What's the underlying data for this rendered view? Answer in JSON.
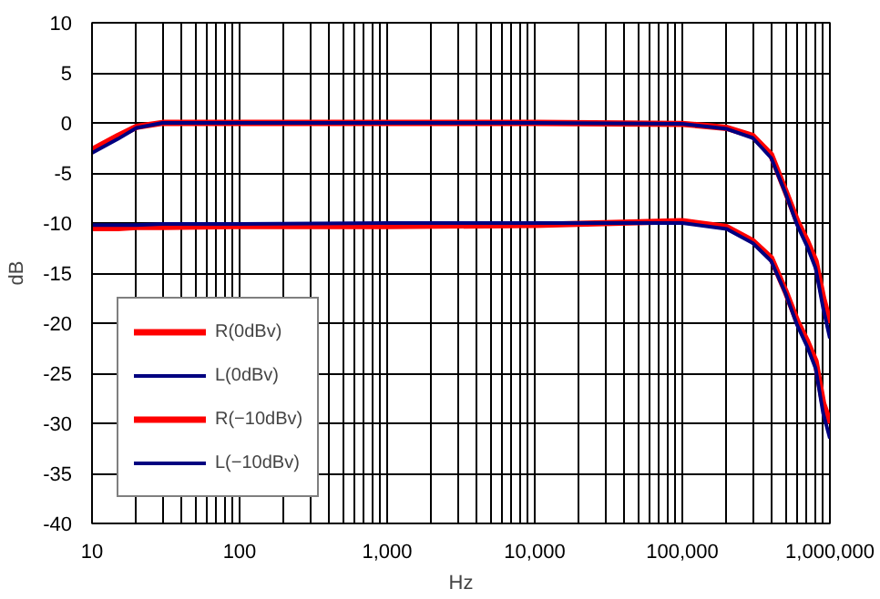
{
  "chart_data": {
    "type": "line",
    "xlabel": "Hz",
    "ylabel": "dB",
    "log": "x",
    "grid": true,
    "legend": "bottom left",
    "line_style": "solid",
    "xlim": [
      10,
      1000000
    ],
    "ylim": [
      -40,
      10
    ],
    "xticks": [
      {
        "value": 10,
        "label": "10"
      },
      {
        "value": 20,
        "label": null
      },
      {
        "value": 30,
        "label": null
      },
      {
        "value": 40,
        "label": null
      },
      {
        "value": 50,
        "label": null
      },
      {
        "value": 60,
        "label": null
      },
      {
        "value": 70,
        "label": null
      },
      {
        "value": 80,
        "label": null
      },
      {
        "value": 90,
        "label": null
      },
      {
        "value": 100,
        "label": "100"
      },
      {
        "value": 200,
        "label": null
      },
      {
        "value": 300,
        "label": null
      },
      {
        "value": 400,
        "label": null
      },
      {
        "value": 500,
        "label": null
      },
      {
        "value": 600,
        "label": null
      },
      {
        "value": 700,
        "label": null
      },
      {
        "value": 800,
        "label": null
      },
      {
        "value": 900,
        "label": null
      },
      {
        "value": 1000,
        "label": "1,000"
      },
      {
        "value": 2000,
        "label": null
      },
      {
        "value": 3000,
        "label": null
      },
      {
        "value": 4000,
        "label": null
      },
      {
        "value": 5000,
        "label": null
      },
      {
        "value": 6000,
        "label": null
      },
      {
        "value": 7000,
        "label": null
      },
      {
        "value": 8000,
        "label": null
      },
      {
        "value": 9000,
        "label": null
      },
      {
        "value": 10000,
        "label": "10,000"
      },
      {
        "value": 20000,
        "label": null
      },
      {
        "value": 30000,
        "label": null
      },
      {
        "value": 40000,
        "label": null
      },
      {
        "value": 50000,
        "label": null
      },
      {
        "value": 60000,
        "label": null
      },
      {
        "value": 70000,
        "label": null
      },
      {
        "value": 80000,
        "label": null
      },
      {
        "value": 90000,
        "label": null
      },
      {
        "value": 100000,
        "label": "100,000"
      },
      {
        "value": 200000,
        "label": null
      },
      {
        "value": 300000,
        "label": null
      },
      {
        "value": 400000,
        "label": null
      },
      {
        "value": 500000,
        "label": null
      },
      {
        "value": 600000,
        "label": null
      },
      {
        "value": 700000,
        "label": null
      },
      {
        "value": 800000,
        "label": null
      },
      {
        "value": 900000,
        "label": null
      },
      {
        "value": 1000000,
        "label": "1,000,000"
      }
    ],
    "yticks": [
      -40,
      -35,
      -30,
      -25,
      -20,
      -15,
      -10,
      -5,
      0,
      5,
      10
    ],
    "x": [
      10,
      15,
      20,
      30,
      100,
      1000,
      10000,
      100000,
      200000,
      300000,
      400000,
      500000,
      600000,
      700000,
      800000,
      900000,
      1000000
    ],
    "series": [
      {
        "name": "R(0dBv)",
        "color": "#ff0000",
        "values": [
          -2.7,
          -1.3,
          -0.4,
          0,
          0,
          0,
          0,
          -0.1,
          -0.5,
          -1.3,
          -3.2,
          -6.8,
          -9.8,
          -11.8,
          -13.8,
          -17.5,
          -20
        ]
      },
      {
        "name": "L(0dBv)",
        "color": "#000080",
        "values": [
          -3,
          -1.6,
          -0.5,
          0,
          0,
          0,
          0,
          -0.1,
          -0.6,
          -1.5,
          -3.5,
          -7,
          -10.2,
          -12.3,
          -14.5,
          -18.5,
          -21.5
        ]
      },
      {
        "name": "R(−10dBv)",
        "color": "#ff0000",
        "values": [
          -10.5,
          -10.5,
          -10.4,
          -10.4,
          -10.3,
          -10.3,
          -10.2,
          -9.8,
          -10.4,
          -11.8,
          -13.5,
          -16.8,
          -19.8,
          -21.8,
          -23.8,
          -28,
          -30
        ]
      },
      {
        "name": "L(−10dBv)",
        "color": "#000080",
        "values": [
          -10.2,
          -10.2,
          -10.2,
          -10.1,
          -10.1,
          -10,
          -10,
          -10,
          -10.6,
          -12,
          -13.8,
          -17,
          -20.2,
          -22.3,
          -24.5,
          -29,
          -31.5
        ]
      }
    ]
  }
}
